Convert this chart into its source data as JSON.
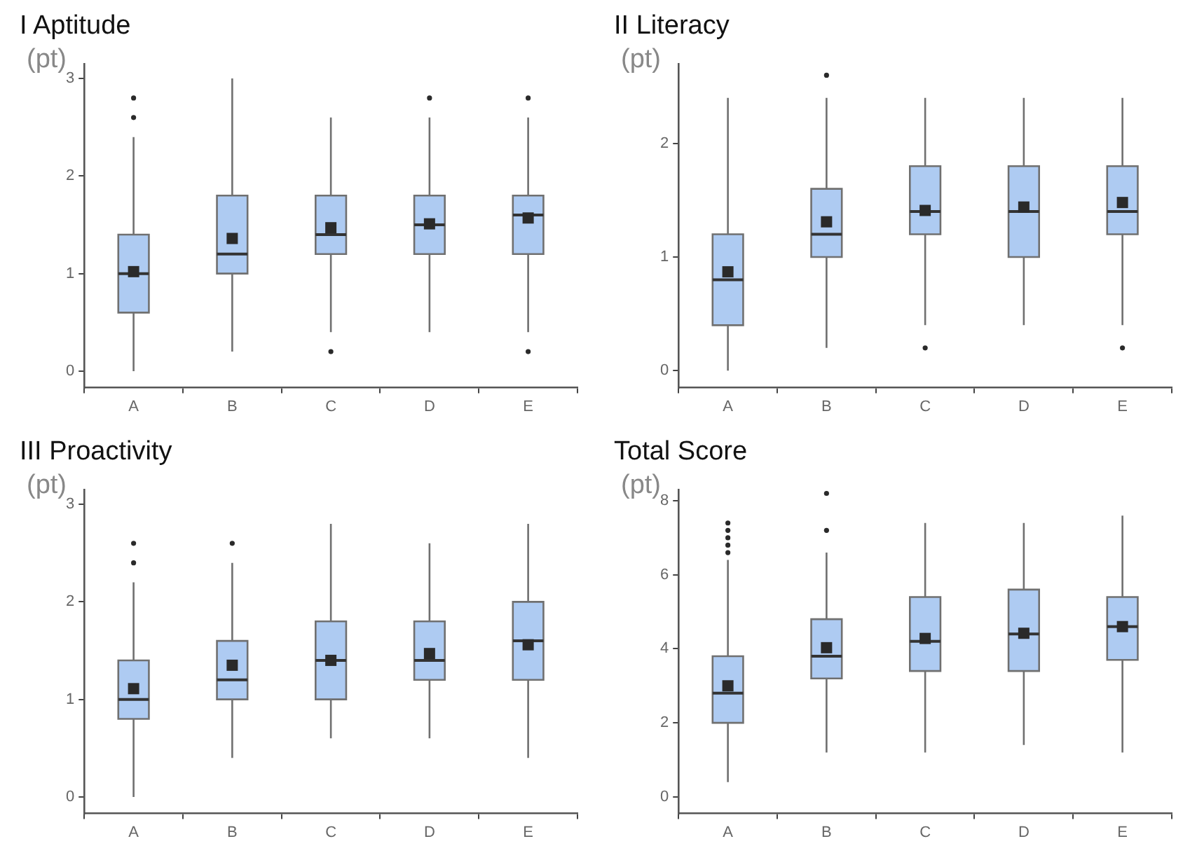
{
  "chart_data": [
    {
      "type": "box",
      "title": "I Aptitude",
      "ylabel": "(pt)",
      "categories": [
        "A",
        "B",
        "C",
        "D",
        "E"
      ],
      "color": "#aecbf2",
      "grid": false,
      "legend": false,
      "ylim": [
        -0.17,
        3.15
      ],
      "yticks": [
        0,
        1,
        2,
        3
      ],
      "boxes": [
        {
          "low": 0,
          "q1": 0.6,
          "median": 1.0,
          "q3": 1.4,
          "high": 2.4,
          "mean": 1.02,
          "outliers": [
            2.6,
            2.8
          ]
        },
        {
          "low": 0.2,
          "q1": 1.0,
          "median": 1.2,
          "q3": 1.8,
          "high": 3.0,
          "mean": 1.36
        },
        {
          "low": 0.4,
          "q1": 1.2,
          "median": 1.4,
          "q3": 1.8,
          "high": 2.6,
          "mean": 1.47,
          "outliers": [
            0.2
          ]
        },
        {
          "low": 0.4,
          "q1": 1.2,
          "median": 1.5,
          "q3": 1.8,
          "high": 2.6,
          "mean": 1.51,
          "outliers": [
            2.8
          ]
        },
        {
          "low": 0.4,
          "q1": 1.2,
          "median": 1.6,
          "q3": 1.8,
          "high": 2.6,
          "mean": 1.57,
          "outliers": [
            0.2,
            2.8
          ]
        }
      ]
    },
    {
      "type": "box",
      "title": "II Literacy",
      "ylabel": "(pt)",
      "categories": [
        "A",
        "B",
        "C",
        "D",
        "E"
      ],
      "color": "#aecbf2",
      "grid": false,
      "legend": false,
      "ylim": [
        -0.15,
        2.7
      ],
      "yticks": [
        0,
        1,
        2
      ],
      "boxes": [
        {
          "low": 0,
          "q1": 0.4,
          "median": 0.8,
          "q3": 1.2,
          "high": 2.4,
          "mean": 0.87
        },
        {
          "low": 0.2,
          "q1": 1.0,
          "median": 1.2,
          "q3": 1.6,
          "high": 2.4,
          "mean": 1.31,
          "outliers": [
            2.6
          ]
        },
        {
          "low": 0.4,
          "q1": 1.2,
          "median": 1.4,
          "q3": 1.8,
          "high": 2.4,
          "mean": 1.41,
          "outliers": [
            0.2
          ]
        },
        {
          "low": 0.4,
          "q1": 1.0,
          "median": 1.4,
          "q3": 1.8,
          "high": 2.4,
          "mean": 1.44
        },
        {
          "low": 0.4,
          "q1": 1.2,
          "median": 1.4,
          "q3": 1.8,
          "high": 2.4,
          "mean": 1.48,
          "outliers": [
            0.2
          ]
        }
      ]
    },
    {
      "type": "box",
      "title": "III Proactivity",
      "ylabel": "(pt)",
      "categories": [
        "A",
        "B",
        "C",
        "D",
        "E"
      ],
      "color": "#aecbf2",
      "grid": false,
      "legend": false,
      "ylim": [
        -0.17,
        3.15
      ],
      "yticks": [
        0,
        1,
        2,
        3
      ],
      "boxes": [
        {
          "low": 0,
          "q1": 0.8,
          "median": 1.0,
          "q3": 1.4,
          "high": 2.2,
          "mean": 1.11,
          "outliers": [
            2.4,
            2.6
          ]
        },
        {
          "low": 0.4,
          "q1": 1.0,
          "median": 1.2,
          "q3": 1.6,
          "high": 2.4,
          "mean": 1.35,
          "outliers": [
            2.6
          ]
        },
        {
          "low": 0.6,
          "q1": 1.0,
          "median": 1.4,
          "q3": 1.8,
          "high": 2.8,
          "mean": 1.4
        },
        {
          "low": 0.6,
          "q1": 1.2,
          "median": 1.4,
          "q3": 1.8,
          "high": 2.6,
          "mean": 1.47
        },
        {
          "low": 0.4,
          "q1": 1.2,
          "median": 1.6,
          "q3": 2.0,
          "high": 2.8,
          "mean": 1.56
        }
      ]
    },
    {
      "type": "box",
      "title": "Total Score",
      "ylabel": "(pt)",
      "categories": [
        "A",
        "B",
        "C",
        "D",
        "E"
      ],
      "color": "#aecbf2",
      "grid": false,
      "legend": false,
      "ylim": [
        -0.45,
        8.3
      ],
      "yticks": [
        0,
        2,
        4,
        6,
        8
      ],
      "boxes": [
        {
          "low": 0.4,
          "q1": 2.0,
          "median": 2.8,
          "q3": 3.8,
          "high": 6.4,
          "mean": 3.0,
          "outliers": [
            6.6,
            6.8,
            7.0,
            7.2,
            7.4
          ]
        },
        {
          "low": 1.2,
          "q1": 3.2,
          "median": 3.8,
          "q3": 4.8,
          "high": 6.6,
          "mean": 4.03,
          "outliers": [
            7.2,
            8.2
          ]
        },
        {
          "low": 1.2,
          "q1": 3.4,
          "median": 4.2,
          "q3": 5.4,
          "high": 7.4,
          "mean": 4.28
        },
        {
          "low": 1.4,
          "q1": 3.4,
          "median": 4.4,
          "q3": 5.6,
          "high": 7.4,
          "mean": 4.42
        },
        {
          "low": 1.2,
          "q1": 3.7,
          "median": 4.6,
          "q3": 5.4,
          "high": 7.6,
          "mean": 4.6
        }
      ]
    }
  ]
}
